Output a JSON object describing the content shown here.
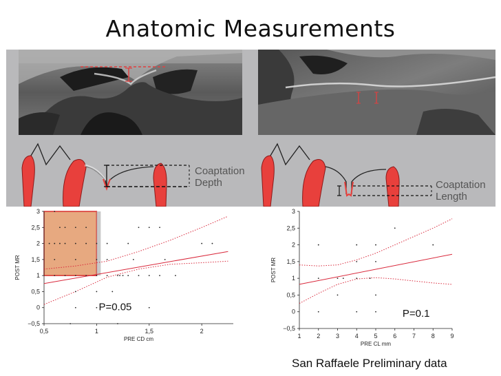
{
  "slide": {
    "title": "Anatomic Measurements",
    "footer": "San Raffaele Preliminary data"
  },
  "diagrams": {
    "left_label_line1": "Coaptation",
    "left_label_line2": "Depth",
    "right_label_line1": "Coaptation",
    "right_label_line2": "Length"
  },
  "colors": {
    "leaflet_red": "#e8403c",
    "fit_line": "#d9273a",
    "highlight_fill": "#e39a6a",
    "highlight_border": "#d8302f"
  },
  "chart_data": [
    {
      "type": "scatter",
      "xlabel": "PRE CD cm",
      "ylabel": "POST MR",
      "annotation": "P=0.05",
      "xlim": [
        0.5,
        2.3
      ],
      "ylim": [
        -0.5,
        3
      ],
      "xticks": [
        "0,5",
        "1",
        "1,5",
        "2"
      ],
      "xtick_values": [
        0.5,
        1,
        1.5,
        2
      ],
      "yticks": [
        "−0,5",
        "0",
        "0,5",
        "1",
        "1,5",
        "2",
        "2,5",
        "3"
      ],
      "ytick_values": [
        -0.5,
        0,
        0.5,
        1,
        1.5,
        2,
        2.5,
        3
      ],
      "highlight_region": {
        "x": [
          0.5,
          1.0
        ],
        "y": [
          1.0,
          3.0
        ]
      },
      "points": [
        [
          0.6,
          3
        ],
        [
          0.65,
          2.5
        ],
        [
          0.7,
          2.5
        ],
        [
          0.8,
          2.5
        ],
        [
          0.9,
          2.5
        ],
        [
          0.55,
          2
        ],
        [
          0.6,
          2
        ],
        [
          0.65,
          2
        ],
        [
          0.7,
          2
        ],
        [
          0.8,
          2
        ],
        [
          0.9,
          2
        ],
        [
          1.0,
          2
        ],
        [
          1.1,
          2
        ],
        [
          1.3,
          2
        ],
        [
          1.4,
          2.5
        ],
        [
          1.5,
          2.5
        ],
        [
          1.6,
          2.5
        ],
        [
          2.0,
          2
        ],
        [
          2.1,
          2
        ],
        [
          0.6,
          1.5
        ],
        [
          0.8,
          1.5
        ],
        [
          1.0,
          1.5
        ],
        [
          1.1,
          1.5
        ],
        [
          1.35,
          1.5
        ],
        [
          1.65,
          1.5
        ],
        [
          0.6,
          1
        ],
        [
          0.7,
          1
        ],
        [
          0.8,
          1
        ],
        [
          0.9,
          1
        ],
        [
          1.0,
          1
        ],
        [
          1.1,
          1
        ],
        [
          1.2,
          1
        ],
        [
          1.22,
          1
        ],
        [
          1.25,
          1
        ],
        [
          1.3,
          1
        ],
        [
          1.4,
          1
        ],
        [
          1.5,
          1
        ],
        [
          1.6,
          1
        ],
        [
          1.75,
          1
        ],
        [
          0.8,
          0.5
        ],
        [
          1.0,
          0.5
        ],
        [
          1.15,
          0.5
        ],
        [
          0.8,
          0
        ],
        [
          1.0,
          0
        ],
        [
          1.5,
          0
        ],
        [
          0.75,
          -0.5
        ],
        [
          1.2,
          -0.5
        ]
      ],
      "fit_line": [
        [
          0.5,
          0.75
        ],
        [
          2.25,
          1.75
        ]
      ],
      "ci_upper": [
        [
          0.5,
          1.2
        ],
        [
          0.8,
          1.3
        ],
        [
          1.1,
          1.45
        ],
        [
          1.4,
          1.75
        ],
        [
          1.7,
          2.1
        ],
        [
          2.0,
          2.5
        ],
        [
          2.25,
          2.85
        ]
      ],
      "ci_lower": [
        [
          0.5,
          0.1
        ],
        [
          0.8,
          0.5
        ],
        [
          1.1,
          0.95
        ],
        [
          1.4,
          1.2
        ],
        [
          1.7,
          1.35
        ],
        [
          2.0,
          1.4
        ],
        [
          2.25,
          1.45
        ]
      ]
    },
    {
      "type": "scatter",
      "xlabel": "PRE CL mm",
      "ylabel": "POST MR",
      "annotation": "P=0.1",
      "xlim": [
        1,
        9
      ],
      "ylim": [
        -0.5,
        3
      ],
      "xticks": [
        "1",
        "2",
        "3",
        "4",
        "5",
        "6",
        "7",
        "8",
        "9"
      ],
      "xtick_values": [
        1,
        2,
        3,
        4,
        5,
        6,
        7,
        8,
        9
      ],
      "yticks": [
        "−0,5",
        "0",
        "0,5",
        "1",
        "1,5",
        "2",
        "2,5",
        "3"
      ],
      "ytick_values": [
        -0.5,
        0,
        0.5,
        1,
        1.5,
        2,
        2.5,
        3
      ],
      "points": [
        [
          6,
          2.5
        ],
        [
          2,
          2
        ],
        [
          4,
          2
        ],
        [
          5,
          2
        ],
        [
          8,
          2
        ],
        [
          4,
          1.5
        ],
        [
          5,
          1.5
        ],
        [
          2,
          1
        ],
        [
          3,
          1
        ],
        [
          3.3,
          1
        ],
        [
          4,
          1
        ],
        [
          4.7,
          1
        ],
        [
          3,
          0.5
        ],
        [
          5,
          0.5
        ],
        [
          2,
          0
        ],
        [
          4,
          0
        ],
        [
          5,
          0
        ]
      ],
      "fit_line": [
        [
          1,
          0.82
        ],
        [
          9,
          1.72
        ]
      ],
      "ci_upper": [
        [
          1,
          1.4
        ],
        [
          2,
          1.37
        ],
        [
          3,
          1.4
        ],
        [
          4,
          1.55
        ],
        [
          5,
          1.75
        ],
        [
          6,
          2.0
        ],
        [
          7,
          2.25
        ],
        [
          8,
          2.5
        ],
        [
          9,
          2.78
        ]
      ],
      "ci_lower": [
        [
          1,
          0.25
        ],
        [
          2,
          0.55
        ],
        [
          3,
          0.82
        ],
        [
          4,
          0.98
        ],
        [
          5,
          1.02
        ],
        [
          6,
          0.98
        ],
        [
          7,
          0.92
        ],
        [
          8,
          0.86
        ],
        [
          9,
          0.82
        ]
      ]
    }
  ]
}
